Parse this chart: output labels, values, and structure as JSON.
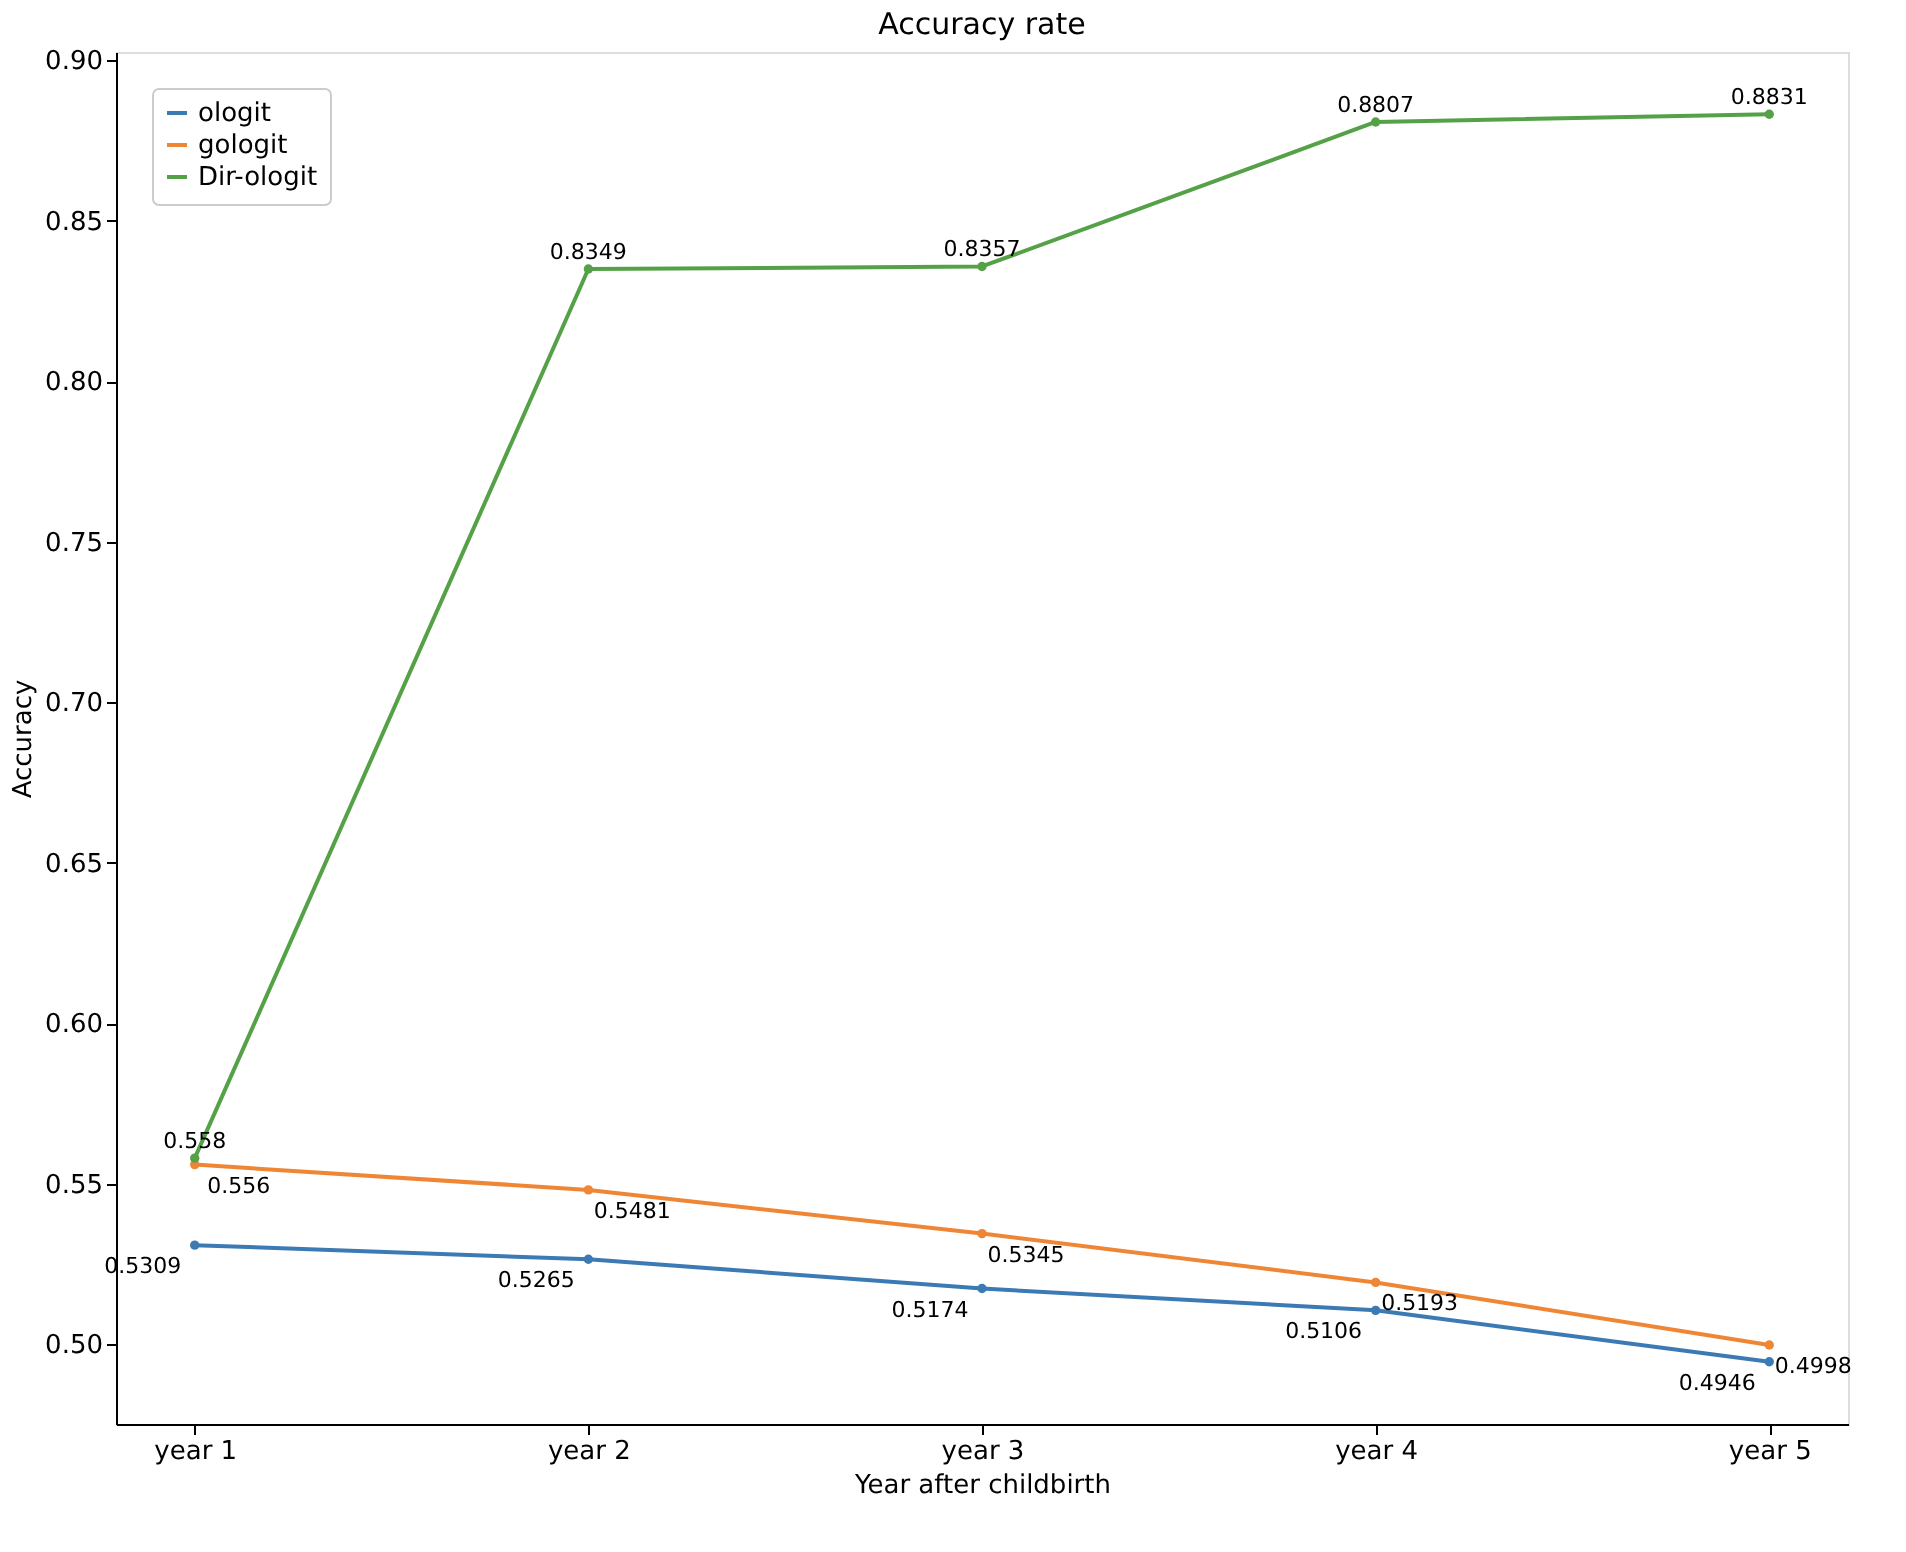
{
  "chart_data": {
    "type": "line",
    "title": "Accuracy rate",
    "xlabel": "Year after childbirth",
    "ylabel": "Accuracy",
    "categories": [
      "year 1",
      "year 2",
      "year 3",
      "year 4",
      "year 5"
    ],
    "series": [
      {
        "name": "ologit",
        "color": "#3c7ab4",
        "values": [
          0.5309,
          0.5265,
          0.5174,
          0.5106,
          0.4946
        ]
      },
      {
        "name": "gologit",
        "color": "#ef8636",
        "values": [
          0.556,
          0.5481,
          0.5345,
          0.5193,
          0.4998
        ]
      },
      {
        "name": "Dir-ologit",
        "color": "#55a147",
        "values": [
          0.558,
          0.8349,
          0.8357,
          0.8807,
          0.8831
        ]
      }
    ],
    "ylim": [
      0.4752,
      0.9025
    ],
    "yticks": [
      {
        "value": 0.5,
        "label": "0.50"
      },
      0.55,
      {
        "value": 0.6,
        "label": "0.60"
      },
      0.65,
      {
        "value": 0.7,
        "label": "0.70"
      },
      0.75,
      {
        "value": 0.8,
        "label": "0.80"
      },
      0.85,
      {
        "value": 0.9,
        "label": "0.90"
      }
    ],
    "data_labels": true,
    "legend": "top left",
    "marker": "circle",
    "line_style": "solid",
    "grid": false
  }
}
